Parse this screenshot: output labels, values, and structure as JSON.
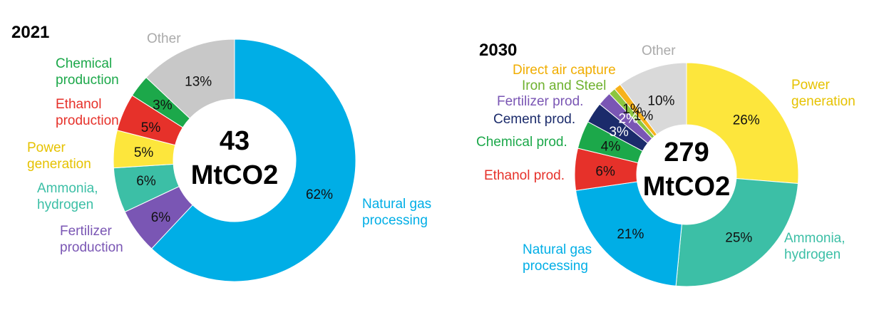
{
  "chart_data": [
    {
      "type": "pie",
      "title": "2021",
      "center_text": [
        "43",
        "MtCO2"
      ],
      "slices": [
        {
          "name": "Natural gas processing",
          "label_lines": [
            "Natural gas",
            "processing"
          ],
          "value": 62,
          "label": "62%",
          "color": "#00aee6",
          "pct_color": "#111111",
          "label_color": "#00aee6"
        },
        {
          "name": "Fertilizer production",
          "label_lines": [
            "Fertilizer",
            "production"
          ],
          "value": 6,
          "label": "6%",
          "color": "#7a56b4",
          "pct_color": "#111111",
          "label_color": "#7a56b4"
        },
        {
          "name": "Ammonia, hydrogen",
          "label_lines": [
            "Ammonia,",
            "hydrogen"
          ],
          "value": 6,
          "label": "6%",
          "color": "#3cbfa6",
          "pct_color": "#111111",
          "label_color": "#3cbfa6"
        },
        {
          "name": "Power generation",
          "label_lines": [
            "Power",
            "generation"
          ],
          "value": 5,
          "label": "5%",
          "color": "#fde63c",
          "pct_color": "#111111",
          "label_color": "#e6c200"
        },
        {
          "name": "Ethanol production",
          "label_lines": [
            "Ethanol",
            "production"
          ],
          "value": 5,
          "label": "5%",
          "color": "#e6312a",
          "pct_color": "#111111",
          "label_color": "#e6312a"
        },
        {
          "name": "Chemical production",
          "label_lines": [
            "Chemical",
            "production"
          ],
          "value": 3,
          "label": "3%",
          "color": "#1ca84a",
          "pct_color": "#111111",
          "label_color": "#1ca84a"
        },
        {
          "name": "Other",
          "label_lines": [
            "Other"
          ],
          "value": 13,
          "label": "13%",
          "color": "#c8c8c8",
          "pct_color": "#111111",
          "label_color": "#aaaaaa"
        }
      ]
    },
    {
      "type": "pie",
      "title": "2030",
      "center_text": [
        "279",
        "MtCO2"
      ],
      "slices": [
        {
          "name": "Power generation",
          "label_lines": [
            "Power",
            "generation"
          ],
          "value": 26,
          "label": "26%",
          "color": "#fde63c",
          "pct_color": "#111111",
          "label_color": "#e6c200"
        },
        {
          "name": "Ammonia, hydrogen",
          "label_lines": [
            "Ammonia,",
            "hydrogen"
          ],
          "value": 25,
          "label": "25%",
          "color": "#3cbfa6",
          "pct_color": "#111111",
          "label_color": "#3cbfa6"
        },
        {
          "name": "Natural gas processing",
          "label_lines": [
            "Natural gas",
            "processing"
          ],
          "value": 21,
          "label": "21%",
          "color": "#00aee6",
          "pct_color": "#111111",
          "label_color": "#00aee6"
        },
        {
          "name": "Ethanol prod.",
          "label_lines": [
            "Ethanol prod."
          ],
          "value": 6,
          "label": "6%",
          "color": "#e6312a",
          "pct_color": "#111111",
          "label_color": "#e6312a"
        },
        {
          "name": "Chemical prod.",
          "label_lines": [
            "Chemical prod."
          ],
          "value": 4,
          "label": "4%",
          "color": "#1ca84a",
          "pct_color": "#111111",
          "label_color": "#1ca84a"
        },
        {
          "name": "Cement prod.",
          "label_lines": [
            "Cement prod."
          ],
          "value": 3,
          "label": "3%",
          "color": "#1b2b6b",
          "pct_color": "#ffffff",
          "label_color": "#1b2b6b"
        },
        {
          "name": "Fertilizer prod.",
          "label_lines": [
            "Fertilizer prod."
          ],
          "value": 2,
          "label": "2%",
          "color": "#7a56b4",
          "pct_color": "#ffffff",
          "label_color": "#7a56b4"
        },
        {
          "name": "Iron and Steel",
          "label_lines": [
            "Iron and Steel"
          ],
          "value": 1,
          "label": "1%",
          "color": "#8cc63f",
          "pct_color": "#111111",
          "label_color": "#6eb12e"
        },
        {
          "name": "Direct air capture",
          "label_lines": [
            "Direct air capture"
          ],
          "value": 1,
          "label": "1%",
          "color": "#f7b21b",
          "pct_color": "#111111",
          "label_color": "#f0ad00"
        },
        {
          "name": "Other",
          "label_lines": [
            "Other"
          ],
          "value": 10,
          "label": "10%",
          "color": "#d9d9d9",
          "pct_color": "#111111",
          "label_color": "#aaaaaa"
        }
      ]
    }
  ]
}
